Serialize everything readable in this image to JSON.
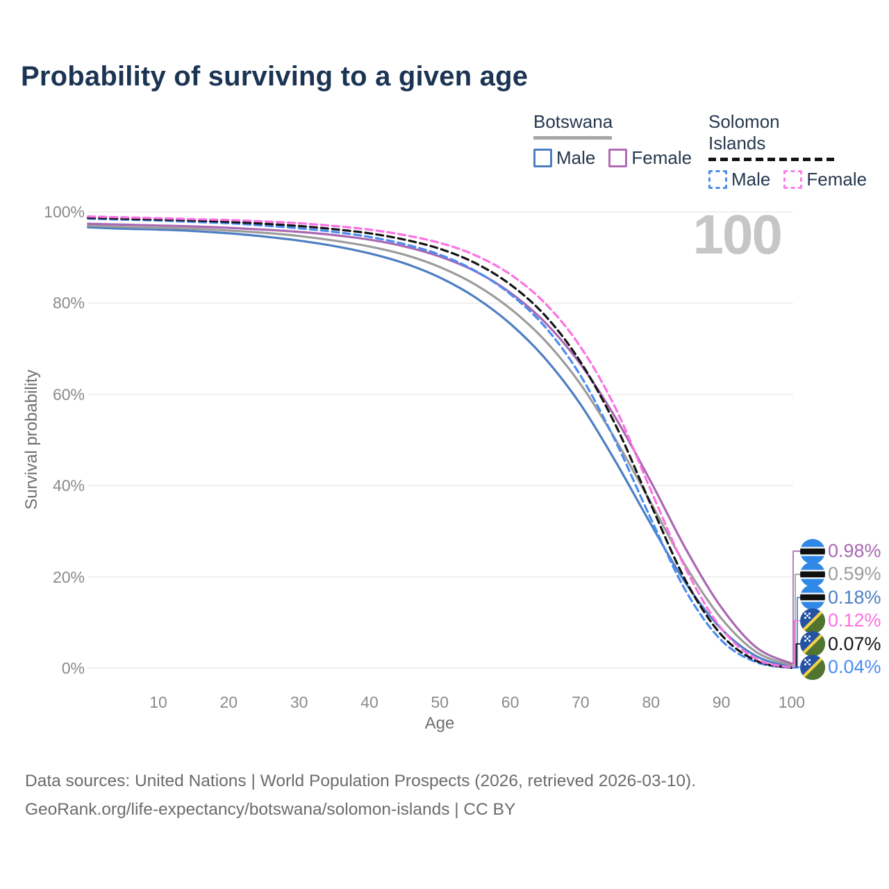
{
  "title": "Probability of surviving to a given age",
  "watermark": "100",
  "legend": {
    "groups": [
      {
        "label": "Botswana",
        "line_style": "solid",
        "underline_color": "#a6a6a6",
        "items": [
          {
            "label": "Male",
            "color": "#4d7ec3"
          },
          {
            "label": "Female",
            "color": "#b16cb8"
          }
        ]
      },
      {
        "label": "Solomon Islands",
        "line_style": "dashed",
        "underline_color": "#141414",
        "items": [
          {
            "label": "Male",
            "color": "#4a8cf0"
          },
          {
            "label": "Female",
            "color": "#fc7fe6"
          }
        ]
      }
    ]
  },
  "chart_data": {
    "type": "line",
    "title": "Probability of surviving to a given age",
    "xlabel": "Age",
    "ylabel": "Survival probability",
    "xlim": [
      0,
      100
    ],
    "ylim": [
      0,
      100
    ],
    "x_ticks": [
      10,
      20,
      30,
      40,
      50,
      60,
      70,
      80,
      90,
      100
    ],
    "y_ticks": [
      "0%",
      "20%",
      "40%",
      "60%",
      "80%",
      "100%"
    ],
    "grid": "horizontal",
    "unit": "%",
    "age_counter": 100,
    "x": [
      0,
      5,
      10,
      15,
      20,
      25,
      30,
      35,
      40,
      45,
      50,
      55,
      60,
      65,
      70,
      75,
      80,
      85,
      90,
      95,
      100
    ],
    "series": [
      {
        "name": "Botswana Male",
        "country": "Botswana",
        "sex": "Male",
        "style": "solid",
        "color": "#4d7ec3",
        "end_label": "0.18%",
        "values": [
          96.6,
          96.3,
          96.1,
          95.8,
          95.3,
          94.6,
          93.7,
          92.5,
          90.9,
          88.7,
          85.6,
          81.3,
          75.5,
          67.8,
          57.8,
          45.2,
          31.5,
          18.5,
          8.6,
          2.6,
          0.18
        ]
      },
      {
        "name": "Botswana Both sexes",
        "country": "Botswana",
        "sex": "Both",
        "style": "solid",
        "color": "#9c9c9c",
        "end_label": "0.59%",
        "values": [
          97.0,
          96.7,
          96.5,
          96.3,
          95.9,
          95.4,
          94.7,
          93.7,
          92.4,
          90.6,
          87.9,
          84.1,
          78.8,
          71.7,
          62.2,
          50.0,
          36.2,
          22.2,
          10.9,
          3.5,
          0.59
        ]
      },
      {
        "name": "Botswana Female",
        "country": "Botswana",
        "sex": "Female",
        "style": "solid",
        "color": "#a968b2",
        "end_label": "0.98%",
        "values": [
          97.4,
          97.2,
          97.0,
          96.8,
          96.5,
          96.1,
          95.6,
          94.9,
          93.9,
          92.4,
          90.2,
          87.0,
          82.3,
          75.7,
          66.6,
          54.8,
          40.8,
          26.0,
          13.3,
          4.5,
          0.98
        ]
      },
      {
        "name": "Solomon Islands Male",
        "country": "Solomon Islands",
        "sex": "Male",
        "style": "dashed",
        "color": "#4a8cf0",
        "end_label": "0.04%",
        "values": [
          98.5,
          98.3,
          98.1,
          97.8,
          97.5,
          97.0,
          96.4,
          95.6,
          94.5,
          92.9,
          90.6,
          87.1,
          82.0,
          74.7,
          64.1,
          49.6,
          32.7,
          16.8,
          6.1,
          1.3,
          0.04
        ]
      },
      {
        "name": "Solomon Islands Both sexes",
        "country": "Solomon Islands",
        "sex": "Both",
        "style": "dashed",
        "color": "#141414",
        "end_label": "0.07%",
        "values": [
          98.7,
          98.5,
          98.3,
          98.1,
          97.8,
          97.4,
          96.9,
          96.2,
          95.3,
          93.9,
          91.9,
          88.8,
          84.1,
          77.2,
          67.1,
          53.2,
          35.8,
          19.0,
          7.3,
          1.6,
          0.07
        ]
      },
      {
        "name": "Solomon Islands Female",
        "country": "Solomon Islands",
        "sex": "Female",
        "style": "dashed",
        "color": "#fb71e3",
        "end_label": "0.12%",
        "values": [
          99.0,
          98.8,
          98.6,
          98.4,
          98.2,
          97.9,
          97.5,
          96.9,
          96.1,
          94.9,
          93.2,
          90.5,
          86.3,
          79.9,
          70.4,
          56.9,
          38.9,
          21.6,
          8.7,
          2.0,
          0.12
        ]
      }
    ]
  },
  "end_labels": [
    {
      "value": "0.98%",
      "series": "Botswana Female",
      "flag": "botswana",
      "color": "#a968b2",
      "final": 0.98
    },
    {
      "value": "0.59%",
      "series": "Botswana Both sexes",
      "flag": "botswana",
      "color": "#9c9c9c",
      "final": 0.59
    },
    {
      "value": "0.18%",
      "series": "Botswana Male",
      "flag": "botswana",
      "color": "#4d7ec3",
      "final": 0.18
    },
    {
      "value": "0.12%",
      "series": "Solomon Islands Female",
      "flag": "solomon-islands",
      "color": "#fb71e3",
      "final": 0.12
    },
    {
      "value": "0.07%",
      "series": "Solomon Islands Both sexes",
      "flag": "solomon-islands",
      "color": "#141414",
      "final": 0.07
    },
    {
      "value": "0.04%",
      "series": "Solomon Islands Male",
      "flag": "solomon-islands",
      "color": "#4a8cf0",
      "final": 0.04
    }
  ],
  "flags": {
    "botswana": {
      "blue": "#2f88e5",
      "white": "#ffffff",
      "black": "#101010"
    },
    "solomon_islands": {
      "blue": "#2553a4",
      "green": "#51742f",
      "yellow": "#f3d14b",
      "star": "#ffffff"
    }
  },
  "footer": {
    "line1": "Data sources: United Nations | World Population Prospects (2026, retrieved 2026-03-10).",
    "line2": "GeoRank.org/life-expectancy/botswana/solomon-islands | CC BY"
  }
}
